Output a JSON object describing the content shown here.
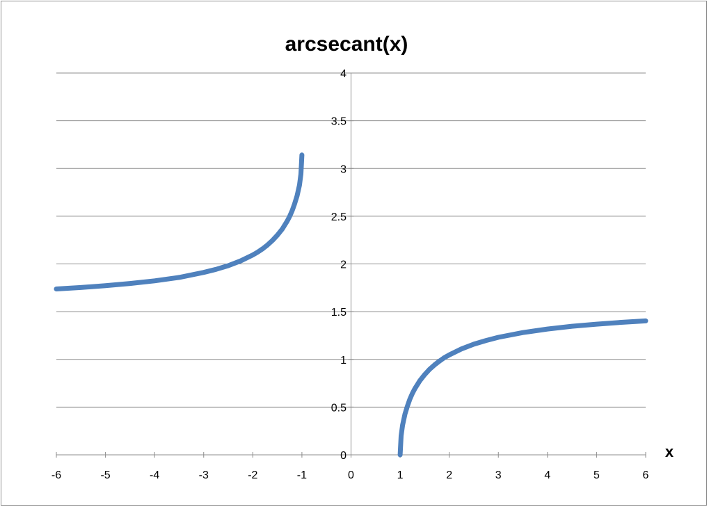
{
  "chart_data": {
    "type": "line",
    "title": "arcsecant(x)",
    "xlabel": "x",
    "ylabel": "",
    "xlim": [
      -6,
      6
    ],
    "ylim": [
      0,
      4
    ],
    "x_ticks": [
      -6,
      -5,
      -4,
      -3,
      -2,
      -1,
      0,
      1,
      2,
      3,
      4,
      5,
      6
    ],
    "y_ticks": [
      0,
      0.5,
      1,
      1.5,
      2,
      2.5,
      3,
      3.5,
      4
    ],
    "grid": true,
    "legend": "none",
    "color": "#4f81bd",
    "series": [
      {
        "x": [
          -6,
          -5.5,
          -5,
          -4.5,
          -4,
          -3.5,
          -3,
          -2.75,
          -2.5,
          -2.25,
          -2,
          -1.9,
          -1.8,
          -1.7,
          -1.6,
          -1.5,
          -1.4,
          -1.3,
          -1.25,
          -1.2,
          -1.15,
          -1.1,
          -1.05,
          -1.02,
          -1
        ],
        "y": [
          1.738,
          1.753,
          1.772,
          1.795,
          1.823,
          1.859,
          1.911,
          1.943,
          1.982,
          2.031,
          2.094,
          2.124,
          2.159,
          2.199,
          2.246,
          2.301,
          2.366,
          2.448,
          2.498,
          2.556,
          2.627,
          2.712,
          2.825,
          2.942,
          3.142
        ]
      },
      {
        "x": [
          1,
          1.02,
          1.05,
          1.1,
          1.15,
          1.2,
          1.25,
          1.3,
          1.4,
          1.5,
          1.6,
          1.7,
          1.8,
          1.9,
          2,
          2.25,
          2.5,
          2.75,
          3,
          3.5,
          4,
          4.5,
          5,
          5.5,
          6
        ],
        "y": [
          0,
          0.199,
          0.311,
          0.429,
          0.514,
          0.586,
          0.644,
          0.694,
          0.775,
          0.841,
          0.896,
          0.942,
          0.982,
          1.018,
          1.047,
          1.11,
          1.159,
          1.198,
          1.231,
          1.281,
          1.318,
          1.347,
          1.369,
          1.388,
          1.403
        ]
      }
    ]
  }
}
